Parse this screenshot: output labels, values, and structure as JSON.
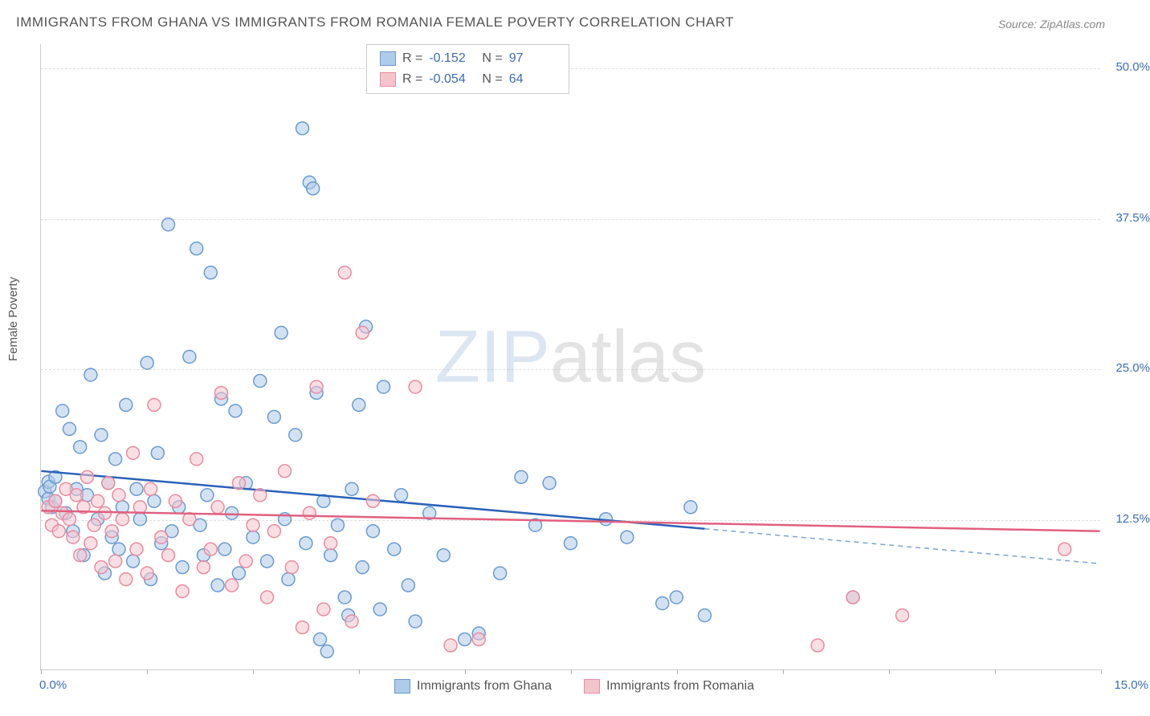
{
  "title": "IMMIGRANTS FROM GHANA VS IMMIGRANTS FROM ROMANIA FEMALE POVERTY CORRELATION CHART",
  "source": "Source: ZipAtlas.com",
  "ylabel": "Female Poverty",
  "watermark_a": "ZIP",
  "watermark_b": "atlas",
  "chart": {
    "type": "scatter",
    "xlim": [
      0,
      15
    ],
    "ylim": [
      0,
      52
    ],
    "xticks": [
      0,
      1.5,
      3,
      4.5,
      6,
      7.5,
      9,
      10.5,
      12,
      13.5,
      15
    ],
    "xticklabels": {
      "0": "0.0%",
      "15": "15.0%"
    },
    "yticks": [
      12.5,
      25.0,
      37.5,
      50.0
    ],
    "yticklabels": [
      "12.5%",
      "25.0%",
      "37.5%",
      "50.0%"
    ],
    "grid_color": "#dddddd",
    "axis_color": "#cccccc",
    "background": "#ffffff",
    "tick_label_color": "#3b6db5",
    "axis_label_color": "#555555",
    "marker_radius": 8,
    "marker_stroke_width": 1.5,
    "series": [
      {
        "name": "Immigrants from Ghana",
        "fill": "#aecbe9",
        "fill_opacity": 0.55,
        "stroke": "#6a9bd1",
        "r_value": "-0.152",
        "n_value": "97",
        "trend": {
          "solid": {
            "x1": 0,
            "y1": 16.5,
            "x2": 9.4,
            "y2": 11.7,
            "color": "#2a62b8",
            "width": 2.5
          },
          "dashed": {
            "x1": 9.4,
            "y1": 11.7,
            "x2": 15,
            "y2": 8.8,
            "color": "#7aa4d8",
            "width": 1.5
          }
        },
        "points": [
          [
            0.05,
            14.8
          ],
          [
            0.1,
            15.6
          ],
          [
            0.1,
            14.2
          ],
          [
            0.12,
            15.2
          ],
          [
            0.15,
            13.5
          ],
          [
            0.2,
            16.0
          ],
          [
            0.2,
            14.0
          ],
          [
            0.3,
            21.5
          ],
          [
            0.35,
            13.0
          ],
          [
            0.4,
            20.0
          ],
          [
            0.45,
            11.5
          ],
          [
            0.5,
            15.0
          ],
          [
            0.55,
            18.5
          ],
          [
            0.6,
            9.5
          ],
          [
            0.65,
            14.5
          ],
          [
            0.7,
            24.5
          ],
          [
            0.8,
            12.5
          ],
          [
            0.85,
            19.5
          ],
          [
            0.9,
            8.0
          ],
          [
            0.95,
            15.5
          ],
          [
            1.0,
            11.0
          ],
          [
            1.05,
            17.5
          ],
          [
            1.1,
            10.0
          ],
          [
            1.15,
            13.5
          ],
          [
            1.2,
            22.0
          ],
          [
            1.3,
            9.0
          ],
          [
            1.35,
            15.0
          ],
          [
            1.4,
            12.5
          ],
          [
            1.5,
            25.5
          ],
          [
            1.55,
            7.5
          ],
          [
            1.6,
            14.0
          ],
          [
            1.65,
            18.0
          ],
          [
            1.7,
            10.5
          ],
          [
            1.8,
            37.0
          ],
          [
            1.85,
            11.5
          ],
          [
            1.95,
            13.5
          ],
          [
            2.0,
            8.5
          ],
          [
            2.1,
            26.0
          ],
          [
            2.2,
            35.0
          ],
          [
            2.25,
            12.0
          ],
          [
            2.3,
            9.5
          ],
          [
            2.35,
            14.5
          ],
          [
            2.4,
            33.0
          ],
          [
            2.5,
            7.0
          ],
          [
            2.55,
            22.5
          ],
          [
            2.6,
            10.0
          ],
          [
            2.7,
            13.0
          ],
          [
            2.75,
            21.5
          ],
          [
            2.8,
            8.0
          ],
          [
            2.9,
            15.5
          ],
          [
            3.0,
            11.0
          ],
          [
            3.1,
            24.0
          ],
          [
            3.2,
            9.0
          ],
          [
            3.3,
            21.0
          ],
          [
            3.4,
            28.0
          ],
          [
            3.45,
            12.5
          ],
          [
            3.5,
            7.5
          ],
          [
            3.6,
            19.5
          ],
          [
            3.7,
            45.0
          ],
          [
            3.75,
            10.5
          ],
          [
            3.8,
            40.5
          ],
          [
            3.85,
            40.0
          ],
          [
            3.9,
            23.0
          ],
          [
            3.95,
            2.5
          ],
          [
            4.0,
            14.0
          ],
          [
            4.05,
            1.5
          ],
          [
            4.1,
            9.5
          ],
          [
            4.2,
            12.0
          ],
          [
            4.3,
            6.0
          ],
          [
            4.35,
            4.5
          ],
          [
            4.4,
            15.0
          ],
          [
            4.5,
            22.0
          ],
          [
            4.55,
            8.5
          ],
          [
            4.6,
            28.5
          ],
          [
            4.7,
            11.5
          ],
          [
            4.8,
            5.0
          ],
          [
            4.85,
            23.5
          ],
          [
            5.0,
            10.0
          ],
          [
            5.1,
            14.5
          ],
          [
            5.2,
            7.0
          ],
          [
            5.3,
            4.0
          ],
          [
            5.5,
            13.0
          ],
          [
            5.7,
            9.5
          ],
          [
            6.0,
            2.5
          ],
          [
            6.2,
            3.0
          ],
          [
            6.5,
            8.0
          ],
          [
            6.8,
            16.0
          ],
          [
            7.0,
            12.0
          ],
          [
            7.2,
            15.5
          ],
          [
            7.5,
            10.5
          ],
          [
            8.0,
            12.5
          ],
          [
            8.3,
            11.0
          ],
          [
            8.8,
            5.5
          ],
          [
            9.0,
            6.0
          ],
          [
            9.2,
            13.5
          ],
          [
            9.4,
            4.5
          ],
          [
            11.5,
            6.0
          ]
        ]
      },
      {
        "name": "Immigrants from Romania",
        "fill": "#f4c4cd",
        "fill_opacity": 0.55,
        "stroke": "#e88ba0",
        "r_value": "-0.054",
        "n_value": "64",
        "trend": {
          "solid": {
            "x1": 0,
            "y1": 13.2,
            "x2": 15,
            "y2": 11.5,
            "color": "#e0607f",
            "width": 2.5
          }
        },
        "points": [
          [
            0.1,
            13.5
          ],
          [
            0.15,
            12.0
          ],
          [
            0.2,
            14.0
          ],
          [
            0.25,
            11.5
          ],
          [
            0.3,
            13.0
          ],
          [
            0.35,
            15.0
          ],
          [
            0.4,
            12.5
          ],
          [
            0.45,
            11.0
          ],
          [
            0.5,
            14.5
          ],
          [
            0.55,
            9.5
          ],
          [
            0.6,
            13.5
          ],
          [
            0.65,
            16.0
          ],
          [
            0.7,
            10.5
          ],
          [
            0.75,
            12.0
          ],
          [
            0.8,
            14.0
          ],
          [
            0.85,
            8.5
          ],
          [
            0.9,
            13.0
          ],
          [
            0.95,
            15.5
          ],
          [
            1.0,
            11.5
          ],
          [
            1.05,
            9.0
          ],
          [
            1.1,
            14.5
          ],
          [
            1.15,
            12.5
          ],
          [
            1.2,
            7.5
          ],
          [
            1.3,
            18.0
          ],
          [
            1.35,
            10.0
          ],
          [
            1.4,
            13.5
          ],
          [
            1.5,
            8.0
          ],
          [
            1.55,
            15.0
          ],
          [
            1.6,
            22.0
          ],
          [
            1.7,
            11.0
          ],
          [
            1.8,
            9.5
          ],
          [
            1.9,
            14.0
          ],
          [
            2.0,
            6.5
          ],
          [
            2.1,
            12.5
          ],
          [
            2.2,
            17.5
          ],
          [
            2.3,
            8.5
          ],
          [
            2.4,
            10.0
          ],
          [
            2.5,
            13.5
          ],
          [
            2.55,
            23.0
          ],
          [
            2.7,
            7.0
          ],
          [
            2.8,
            15.5
          ],
          [
            2.9,
            9.0
          ],
          [
            3.0,
            12.0
          ],
          [
            3.1,
            14.5
          ],
          [
            3.2,
            6.0
          ],
          [
            3.3,
            11.5
          ],
          [
            3.45,
            16.5
          ],
          [
            3.55,
            8.5
          ],
          [
            3.7,
            3.5
          ],
          [
            3.8,
            13.0
          ],
          [
            3.9,
            23.5
          ],
          [
            4.0,
            5.0
          ],
          [
            4.1,
            10.5
          ],
          [
            4.3,
            33.0
          ],
          [
            4.4,
            4.0
          ],
          [
            4.55,
            28.0
          ],
          [
            4.7,
            14.0
          ],
          [
            5.3,
            23.5
          ],
          [
            5.8,
            2.0
          ],
          [
            6.2,
            2.5
          ],
          [
            11.0,
            2.0
          ],
          [
            11.5,
            6.0
          ],
          [
            12.2,
            4.5
          ],
          [
            14.5,
            10.0
          ]
        ]
      }
    ]
  },
  "legend_top": {
    "r_label": "R =",
    "n_label": "N ="
  },
  "legend_bottom": [
    {
      "label": "Immigrants from Ghana",
      "fill": "#aecbe9",
      "stroke": "#6a9bd1"
    },
    {
      "label": "Immigrants from Romania",
      "fill": "#f4c4cd",
      "stroke": "#e88ba0"
    }
  ]
}
